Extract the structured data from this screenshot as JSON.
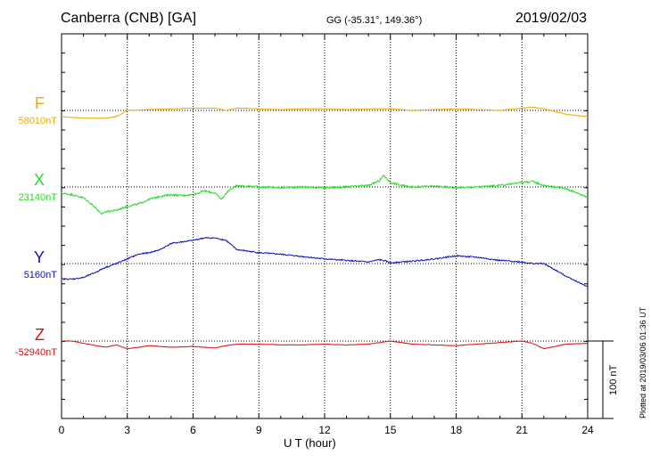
{
  "header": {
    "station": "Canberra (CNB)  [GA]",
    "coords": "GG (-35.31°, 149.36°)",
    "date": "2019/02/03"
  },
  "footer": {
    "plotted": "Plotted at 2019/03/06 01:36 UT",
    "scale": "100 nT"
  },
  "chart_data": {
    "type": "line",
    "title": "Canberra (CNB)  [GA]",
    "xlabel": "U T (hour)",
    "ylabel": "",
    "xlim": [
      0,
      24
    ],
    "xticks": [
      0,
      3,
      6,
      9,
      12,
      15,
      18,
      21,
      24
    ],
    "grid": true,
    "scale_bar_nT": 100,
    "colors": {
      "F": "#f2a900",
      "X": "#22dd22",
      "Y": "#1010cc",
      "Z": "#dd1111"
    },
    "series": [
      {
        "name": "F",
        "baseline": "58010nT",
        "x": [
          0,
          1,
          2,
          2.5,
          3,
          4,
          5,
          6,
          7,
          7.5,
          8,
          9,
          10,
          11,
          12,
          13,
          14,
          15,
          16,
          17,
          18,
          19,
          20,
          21,
          21.5,
          22,
          23,
          24
        ],
        "y": [
          -8,
          -10,
          -10,
          -8,
          0,
          1,
          2,
          3,
          3,
          0,
          3,
          2,
          1,
          2,
          2,
          1,
          2,
          2,
          0,
          1,
          2,
          1,
          0,
          3,
          4,
          2,
          -5,
          -8
        ]
      },
      {
        "name": "X",
        "baseline": "23140nT",
        "x": [
          0,
          0.5,
          1,
          1.5,
          1.8,
          2,
          2.5,
          3,
          3.5,
          4,
          4.5,
          5,
          5.5,
          6,
          6.5,
          7,
          7.3,
          7.6,
          8,
          9,
          10,
          11,
          12,
          13,
          14,
          14.5,
          14.7,
          15,
          15.5,
          16,
          17,
          18,
          19,
          20,
          21,
          21.5,
          22,
          23,
          24
        ],
        "y": [
          -8,
          -10,
          -14,
          -25,
          -35,
          -32,
          -30,
          -25,
          -22,
          -16,
          -12,
          -10,
          -11,
          -10,
          -5,
          -8,
          -16,
          -5,
          2,
          0,
          -1,
          0,
          -1,
          0,
          2,
          8,
          15,
          6,
          2,
          0,
          1,
          -1,
          0,
          2,
          6,
          7,
          2,
          -2,
          -13
        ]
      },
      {
        "name": "Y",
        "baseline": "5160nT",
        "x": [
          0,
          0.5,
          1,
          1.5,
          2,
          2.5,
          3,
          3.5,
          4,
          4.5,
          5,
          5.5,
          6,
          6.5,
          7,
          7.5,
          8,
          9,
          10,
          11,
          12,
          13,
          14,
          14.5,
          14.8,
          15,
          16,
          17,
          18,
          19,
          20,
          21,
          21.5,
          22,
          23,
          24
        ],
        "y": [
          -20,
          -20,
          -18,
          -12,
          -5,
          0,
          6,
          12,
          14,
          18,
          26,
          28,
          30,
          33,
          33,
          30,
          18,
          14,
          12,
          9,
          6,
          4,
          2,
          5,
          3,
          1,
          3,
          6,
          10,
          8,
          4,
          2,
          0,
          0,
          -16,
          -30
        ]
      },
      {
        "name": "Z",
        "baseline": "-52940nT",
        "x": [
          0,
          0.5,
          1,
          2,
          2.5,
          3,
          4,
          5,
          6,
          7,
          7.5,
          8,
          9,
          10,
          11,
          12,
          13,
          14,
          15,
          16,
          17,
          18,
          19,
          20,
          21,
          21.5,
          22,
          23,
          24
        ],
        "y": [
          0,
          0,
          -3,
          -8,
          -5,
          -10,
          -6,
          -8,
          -7,
          -9,
          -6,
          -4,
          -4,
          -5,
          -5,
          -4,
          -5,
          -4,
          0,
          -4,
          -5,
          -6,
          -4,
          -2,
          0,
          -3,
          -10,
          -4,
          -3
        ]
      }
    ]
  }
}
